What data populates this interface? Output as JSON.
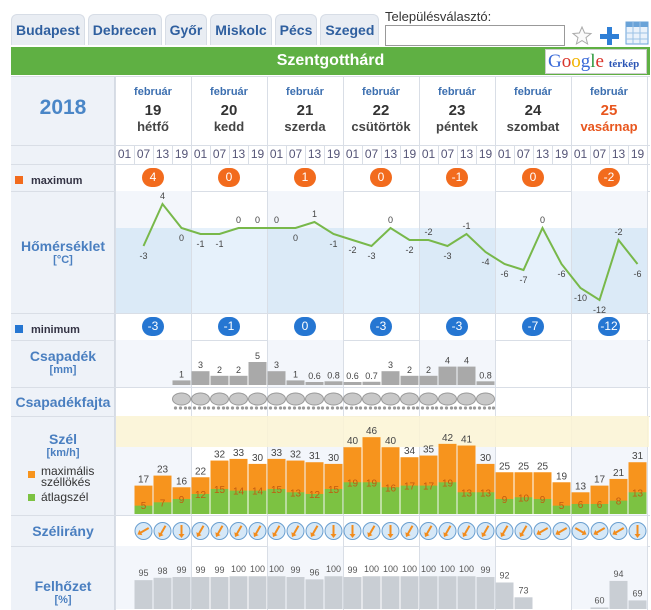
{
  "tabs": [
    "Budapest",
    "Debrecen",
    "Győr",
    "Miskolc",
    "Pécs",
    "Szeged"
  ],
  "selector": {
    "label": "Településválasztó:",
    "value": "",
    "placeholder": ""
  },
  "toolbar_icons": [
    "star-icon",
    "plus-icon",
    "grid-icon"
  ],
  "location": "Szentgotthárd",
  "map_button": {
    "brand": "Google",
    "label": "térkép"
  },
  "year": "2018",
  "days": [
    {
      "month": "február",
      "day": "19",
      "weekday": "hétfő",
      "max": 4,
      "min": -3
    },
    {
      "month": "február",
      "day": "20",
      "weekday": "kedd",
      "max": 0,
      "min": -1
    },
    {
      "month": "február",
      "day": "21",
      "weekday": "szerda",
      "max": 1,
      "min": 0
    },
    {
      "month": "február",
      "day": "22",
      "weekday": "csütörtök",
      "max": 0,
      "min": -3
    },
    {
      "month": "február",
      "day": "23",
      "weekday": "péntek",
      "max": -1,
      "min": -3
    },
    {
      "month": "február",
      "day": "24",
      "weekday": "szombat",
      "max": 0,
      "min": -7
    },
    {
      "month": "február",
      "day": "25",
      "weekday": "vasárnap",
      "max": -2,
      "min": -12,
      "sunday": true
    }
  ],
  "hours": [
    "01",
    "07",
    "13",
    "19"
  ],
  "labels": {
    "maximum": "maximum",
    "temperature": "Hőmérséklet",
    "temp_unit": "[°C]",
    "minimum": "minimum",
    "precip": "Csapadék",
    "precip_unit": "[mm]",
    "precip_type": "Csapadékfajta",
    "wind": "Szél",
    "wind_unit": "[km/h]",
    "gust_legend": "maximális széllökés",
    "avg_legend": "átlagszél",
    "wind_dir": "Szélirány",
    "cloud": "Felhőzet",
    "cloud_unit": "[%]"
  },
  "colors": {
    "max": "#f26b1d",
    "min": "#2576d2",
    "green": "#5fb043",
    "gust": "#f7941d",
    "avg": "#7cc242",
    "line": "#78b84a"
  },
  "chart_data": [
    {
      "type": "line",
      "title": "Hőmérséklet",
      "unit": "°C",
      "start_slot": 1,
      "values": [
        -3,
        4,
        0,
        -1,
        -1,
        0,
        0,
        0,
        0,
        1,
        -1,
        -2,
        -3,
        0,
        -2,
        -2,
        -3,
        -1,
        -4,
        -6,
        -7,
        0,
        -6,
        -10,
        -12,
        -2,
        -6
      ]
    },
    {
      "type": "bar",
      "title": "Csapadék",
      "unit": "mm",
      "start_slot": 3,
      "values": [
        1,
        3,
        2,
        2,
        5,
        3,
        1,
        0.6,
        0.8,
        0.6,
        0.7,
        3,
        2,
        2,
        4,
        4,
        0.8
      ],
      "precip_type": "rain-snow"
    },
    {
      "type": "bar",
      "title": "Szél",
      "unit": "km/h",
      "start_slot": 1,
      "series": [
        {
          "name": "maximális széllökés",
          "values": [
            17,
            23,
            16,
            22,
            32,
            33,
            30,
            33,
            32,
            31,
            30,
            40,
            46,
            40,
            34,
            35,
            42,
            41,
            30,
            25,
            25,
            25,
            19,
            13,
            17,
            21,
            31
          ]
        },
        {
          "name": "átlagszél",
          "values": [
            5,
            7,
            9,
            12,
            15,
            14,
            14,
            15,
            13,
            12,
            15,
            19,
            19,
            16,
            17,
            17,
            19,
            13,
            13,
            9,
            10,
            9,
            5,
            6,
            6,
            8,
            13
          ]
        }
      ]
    },
    {
      "type": "icons",
      "title": "Szélirány",
      "start_slot": 1,
      "rotation_deg": [
        60,
        30,
        0,
        30,
        30,
        30,
        30,
        30,
        30,
        30,
        0,
        0,
        30,
        0,
        30,
        30,
        30,
        30,
        30,
        30,
        30,
        60,
        60,
        -60,
        60,
        60,
        0
      ]
    },
    {
      "type": "bar",
      "title": "Felhőzet",
      "unit": "%",
      "start_slot": 1,
      "values": [
        95,
        98,
        99,
        99,
        99,
        100,
        100,
        100,
        99,
        96,
        100,
        99,
        100,
        100,
        100,
        100,
        100,
        100,
        99,
        92,
        73,
        null,
        null,
        null,
        60,
        94,
        69
      ]
    }
  ]
}
